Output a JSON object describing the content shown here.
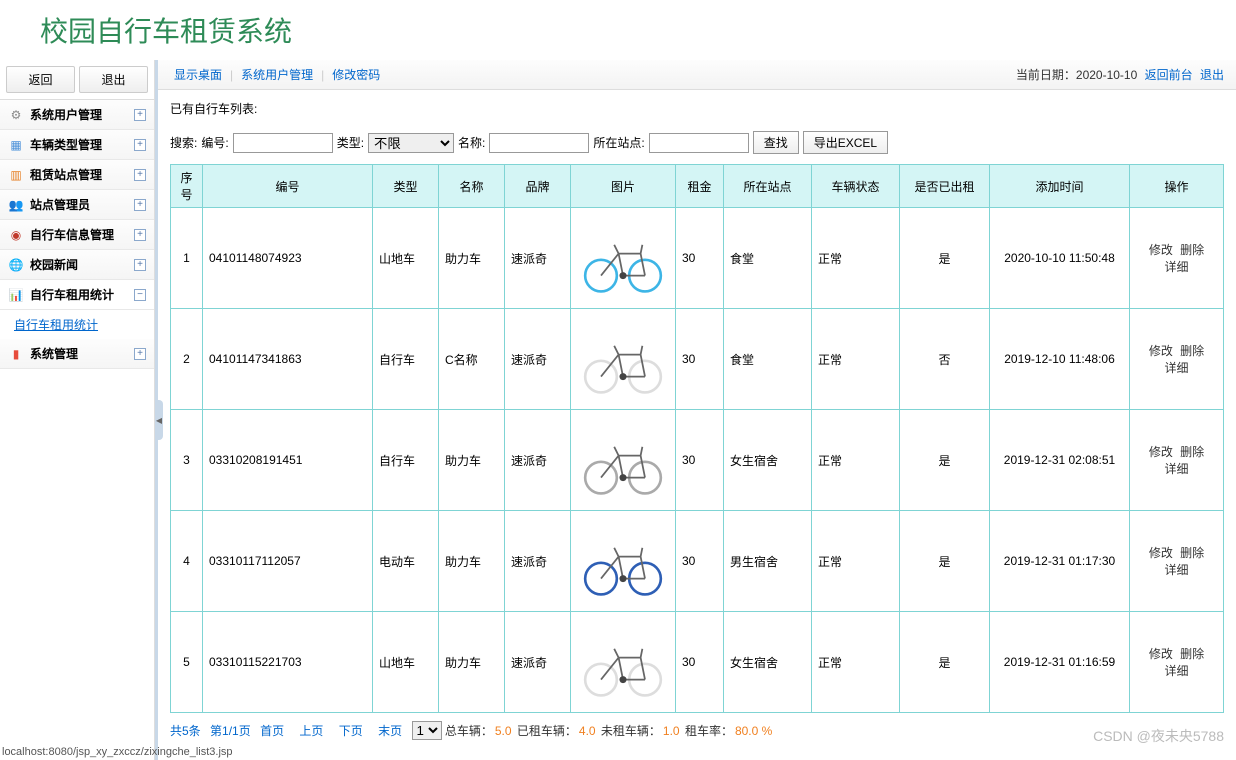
{
  "header": {
    "title": "校园自行车租赁系统"
  },
  "sidebar": {
    "back": "返回",
    "logout": "退出",
    "items": [
      {
        "icon": "⚙",
        "label": "系统用户管理",
        "color": "#888"
      },
      {
        "icon": "▦",
        "label": "车辆类型管理",
        "color": "#4a90d9"
      },
      {
        "icon": "▥",
        "label": "租赁站点管理",
        "color": "#e67e22"
      },
      {
        "icon": "👥",
        "label": "站点管理员",
        "color": "#d35400"
      },
      {
        "icon": "◉",
        "label": "自行车信息管理",
        "color": "#c0392b"
      },
      {
        "icon": "🌐",
        "label": "校园新闻",
        "color": "#27ae60"
      },
      {
        "icon": "📊",
        "label": "自行车租用统计",
        "color": "#e74c3c",
        "expanded": true,
        "sub": "自行车租用统计"
      },
      {
        "icon": "▮",
        "label": "系统管理",
        "color": "#e74c3c"
      }
    ]
  },
  "breadcrumb": {
    "links": [
      "显示桌面",
      "系统用户管理",
      "修改密码"
    ],
    "date_label": "当前日期：",
    "date": "2020-10-10",
    "front": "返回前台",
    "exit": "退出"
  },
  "list_title": "已有自行车列表:",
  "search": {
    "label": "搜索:",
    "code_label": "编号:",
    "type_label": "类型:",
    "type_selected": "不限",
    "name_label": "名称:",
    "site_label": "所在站点:",
    "find_btn": "查找",
    "export_btn": "导出EXCEL"
  },
  "table": {
    "headers": [
      "序号",
      "编号",
      "类型",
      "名称",
      "品牌",
      "图片",
      "租金",
      "所在站点",
      "车辆状态",
      "是否已出租",
      "添加时间",
      "操作"
    ],
    "rows": [
      {
        "idx": "1",
        "code": "04101148074923",
        "type": "山地车",
        "name": "助力车",
        "brand": "速派奇",
        "rent": "30",
        "site": "食堂",
        "status": "正常",
        "rented": "是",
        "time": "2020-10-10 11:50:48",
        "bike": "blue-road"
      },
      {
        "idx": "2",
        "code": "04101147341863",
        "type": "自行车",
        "name": "C名称",
        "brand": "速派奇",
        "rent": "30",
        "site": "食堂",
        "status": "正常",
        "rented": "否",
        "time": "2019-12-10 11:48:06",
        "bike": "white-fold"
      },
      {
        "idx": "3",
        "code": "03310208191451",
        "type": "自行车",
        "name": "助力车",
        "brand": "速派奇",
        "rent": "30",
        "site": "女生宿舍",
        "status": "正常",
        "rented": "是",
        "time": "2019-12-31 02:08:51",
        "bike": "silver-fold"
      },
      {
        "idx": "4",
        "code": "03310117112057",
        "type": "电动车",
        "name": "助力车",
        "brand": "速派奇",
        "rent": "30",
        "site": "男生宿舍",
        "status": "正常",
        "rented": "是",
        "time": "2019-12-31 01:17:30",
        "bike": "blue-race"
      },
      {
        "idx": "5",
        "code": "03310115221703",
        "type": "山地车",
        "name": "助力车",
        "brand": "速派奇",
        "rent": "30",
        "site": "女生宿舍",
        "status": "正常",
        "rented": "是",
        "time": "2019-12-31 01:16:59",
        "bike": "white-low"
      }
    ],
    "actions": {
      "edit": "修改",
      "del": "删除",
      "detail": "详细"
    },
    "col_widths": [
      "32px",
      "170px",
      "66px",
      "66px",
      "66px",
      "100px",
      "48px",
      "88px",
      "88px",
      "90px",
      "140px",
      ""
    ]
  },
  "pagination": {
    "total": "共5条",
    "page": "第1/1页",
    "first": "首页",
    "prev": "上页",
    "next": "下页",
    "last": "末页",
    "sel": "1",
    "stats": [
      {
        "label": "总车辆：",
        "val": "5.0"
      },
      {
        "label": "已租车辆：",
        "val": "4.0"
      },
      {
        "label": "未租车辆：",
        "val": "1.0"
      },
      {
        "label": "租车率：",
        "val": "80.0 %"
      }
    ]
  },
  "watermark": "CSDN @夜未央5788",
  "footer_url": "localhost:8080/jsp_xy_zxccz/zixingche_list3.jsp"
}
